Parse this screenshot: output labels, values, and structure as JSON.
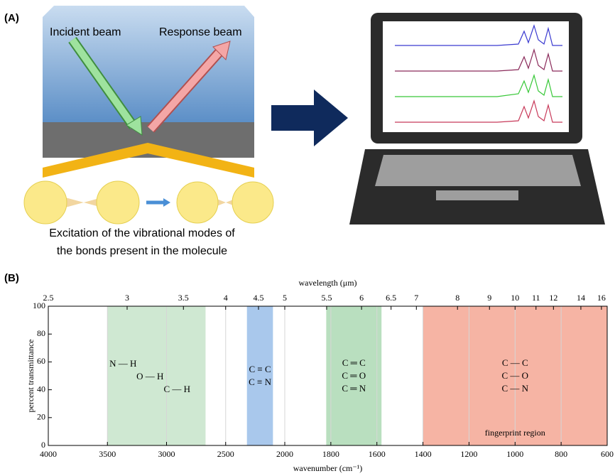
{
  "panel_a": {
    "label": "(A)",
    "incident": "Incident beam",
    "response": "Response beam",
    "caption": [
      "Excitation of the vibrational modes of",
      "the bonds present in the molecule"
    ]
  },
  "chart_data": {
    "type": "bands",
    "panel_label": "(B)",
    "xlabel": "wavenumber (cm⁻¹)",
    "x2label": "wavelength (μm)",
    "ylabel": "percent transmittance",
    "xlim": [
      4000,
      600
    ],
    "xbreak": 2000,
    "xticks": [
      4000,
      3500,
      3000,
      2500,
      2000,
      1800,
      1600,
      1400,
      1200,
      1000,
      800,
      600
    ],
    "x2ticks": [
      2.5,
      3,
      3.5,
      4,
      4.5,
      5,
      5.5,
      6,
      6.5,
      7,
      8,
      9,
      10,
      11,
      12,
      14,
      16
    ],
    "ylim": [
      0,
      100
    ],
    "yticks": [
      0,
      20,
      40,
      60,
      80,
      100
    ],
    "grid": true,
    "bands": [
      {
        "from": 3500,
        "to": 2670,
        "color": "#cfe8d2",
        "labels": [
          "N — H",
          "O — H",
          "C — H"
        ]
      },
      {
        "from": 2320,
        "to": 2100,
        "color": "#a9c8ec",
        "labels": [
          "C ≡ C",
          "C ≡ N"
        ]
      },
      {
        "from": 1820,
        "to": 1580,
        "color": "#b9dfbf",
        "labels": [
          "C ═ C",
          "C ═ O",
          "C ═ N"
        ]
      },
      {
        "from": 1400,
        "to": 600,
        "color": "#f6b4a4",
        "labels": [
          "C — C",
          "C — O",
          "C — N"
        ],
        "note": "fingerprint region"
      }
    ]
  }
}
